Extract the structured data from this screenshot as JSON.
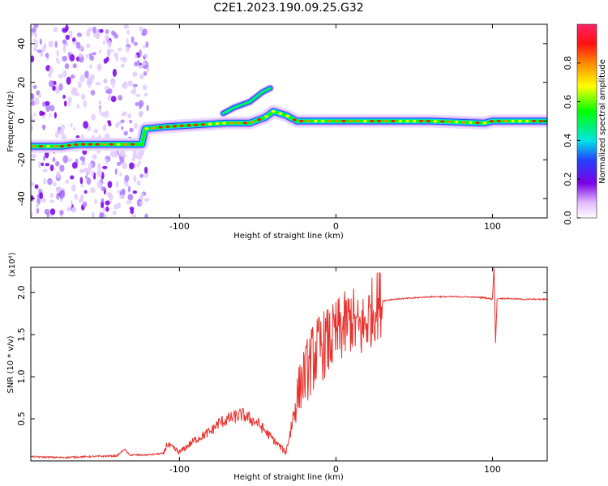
{
  "title": "C2E1.2023.190.09.25.G32",
  "chart_data": [
    {
      "type": "heatmap",
      "xlabel": "Height of straight line (km)",
      "ylabel": "Frequency (Hz)",
      "xlim": [
        -195,
        135
      ],
      "ylim": [
        -50,
        50
      ],
      "xticks": [
        -100,
        0,
        100
      ],
      "yticks": [
        -40,
        -20,
        0,
        20,
        40
      ],
      "colorbar": {
        "label": "Normalized spectral amplitude",
        "range": [
          0.0,
          1.0
        ],
        "ticks": [
          0.0,
          0.2,
          0.4,
          0.6,
          0.8
        ]
      },
      "ridge": [
        {
          "x": -195,
          "y": -13
        },
        {
          "x": -175,
          "y": -13
        },
        {
          "x": -165,
          "y": -12
        },
        {
          "x": -150,
          "y": -12
        },
        {
          "x": -135,
          "y": -12
        },
        {
          "x": -124,
          "y": -12
        },
        {
          "x": -122,
          "y": -4
        },
        {
          "x": -110,
          "y": -3
        },
        {
          "x": -90,
          "y": -2
        },
        {
          "x": -70,
          "y": -1
        },
        {
          "x": -55,
          "y": -1
        },
        {
          "x": -45,
          "y": 2
        },
        {
          "x": -40,
          "y": 5
        },
        {
          "x": -32,
          "y": 3
        },
        {
          "x": -25,
          "y": 0
        },
        {
          "x": 0,
          "y": 0
        },
        {
          "x": 20,
          "y": 0
        },
        {
          "x": 60,
          "y": 0
        },
        {
          "x": 95,
          "y": -1
        },
        {
          "x": 100,
          "y": 0
        },
        {
          "x": 135,
          "y": 0
        }
      ],
      "secondary_ridge": [
        {
          "x": -72,
          "y": 4
        },
        {
          "x": -65,
          "y": 7
        },
        {
          "x": -55,
          "y": 10
        },
        {
          "x": -47,
          "y": 15
        },
        {
          "x": -42,
          "y": 17
        }
      ],
      "noise_band": {
        "x_range": [
          -195,
          -120
        ]
      }
    },
    {
      "type": "line",
      "xlabel": "Height of straight line (km)",
      "ylabel": "SNR (10 * v/v)",
      "y_multiplier": "(x10⁴)",
      "xlim": [
        -195,
        135
      ],
      "ylim": [
        0,
        2.3
      ],
      "xticks": [
        -100,
        0,
        100
      ],
      "yticks": [
        0.5,
        1.0,
        1.5,
        2.0
      ],
      "series": [
        {
          "color": "#e8322d",
          "x": [
            -195,
            -175,
            -160,
            -140,
            -135,
            -132,
            -120,
            -110,
            -108,
            -100,
            -90,
            -80,
            -75,
            -68,
            -60,
            -50,
            -40,
            -32,
            -28,
            -25,
            -22,
            -18,
            -14,
            -10,
            -6,
            -2,
            2,
            6,
            10,
            14,
            18,
            22,
            26,
            30,
            36,
            45,
            60,
            80,
            95,
            100,
            101,
            102,
            103,
            104,
            110,
            120,
            135
          ],
          "y": [
            0.05,
            0.04,
            0.05,
            0.06,
            0.14,
            0.07,
            0.07,
            0.09,
            0.2,
            0.1,
            0.25,
            0.35,
            0.45,
            0.5,
            0.55,
            0.45,
            0.25,
            0.1,
            0.45,
            0.75,
            0.95,
            1.1,
            1.25,
            1.35,
            1.4,
            1.45,
            1.55,
            1.6,
            1.7,
            1.55,
            1.6,
            1.75,
            1.85,
            1.9,
            1.92,
            1.93,
            1.95,
            1.95,
            1.94,
            1.92,
            2.3,
            1.4,
            1.92,
            1.93,
            1.93,
            1.92,
            1.92
          ]
        }
      ]
    }
  ]
}
